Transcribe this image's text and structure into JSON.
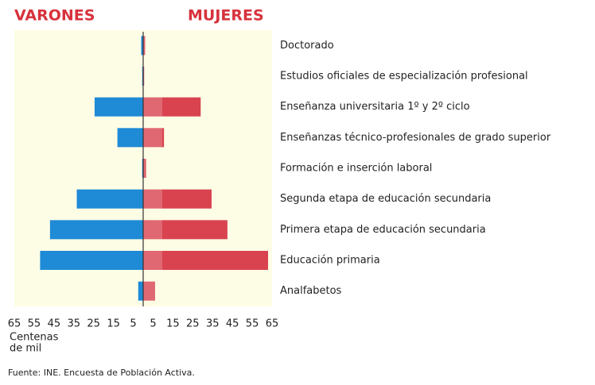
{
  "chart_data": {
    "type": "butterfly",
    "categories": [
      "Doctorado",
      "Estudios oficiales de especialización profesional",
      "Enseñanza universitaria 1º y 2º ciclo",
      "Enseñanzas técnico-profesionales de grado superior",
      "Formación e inserción laboral",
      "Segunda etapa de educación secundaria",
      "Primera etapa de educación secundaria",
      "Educación primaria",
      "Analfabetos"
    ],
    "series": [
      {
        "name": "VARONES",
        "color": "#1f8ad6",
        "side": "left",
        "values": [
          1,
          0.5,
          24.5,
          13,
          0.5,
          33.5,
          47,
          52,
          2.5
        ]
      },
      {
        "name": "MUJERES",
        "color": "#d9434f",
        "side": "right",
        "values": [
          1,
          0.5,
          29,
          10.5,
          1.5,
          34.5,
          42.5,
          63,
          6
        ]
      }
    ],
    "xlim": [
      -65,
      65
    ],
    "xticks": [
      {
        "value": -65,
        "label": "65"
      },
      {
        "value": -55,
        "label": "55"
      },
      {
        "value": -45,
        "label": "45"
      },
      {
        "value": -35,
        "label": "35"
      },
      {
        "value": -25,
        "label": "25"
      },
      {
        "value": -15,
        "label": "15"
      },
      {
        "value": -5,
        "label": "5"
      },
      5,
      15,
      25,
      35,
      45,
      55,
      65
    ],
    "x_label": [
      "Centenas",
      "de mil"
    ],
    "source": "Fuente: INE. Encuesta de Población Activa."
  }
}
